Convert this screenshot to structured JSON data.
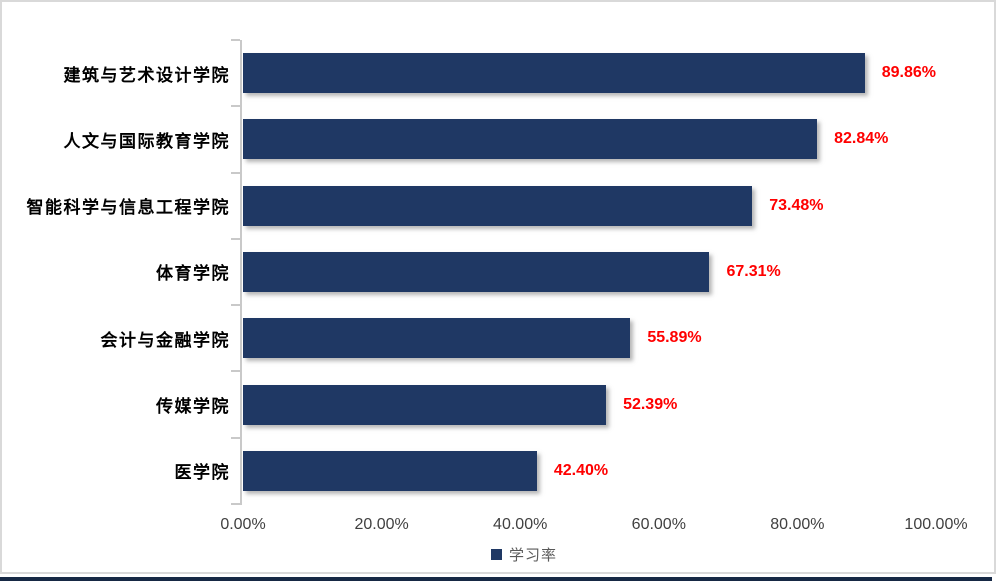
{
  "chart_data": {
    "type": "bar",
    "orientation": "horizontal",
    "title": "",
    "categories": [
      "建筑与艺术设计学院",
      "人文与国际教育学院",
      "智能科学与信息工程学院",
      "体育学院",
      "会计与金融学院",
      "传媒学院",
      "医学院"
    ],
    "values": [
      89.86,
      82.84,
      73.48,
      67.31,
      55.89,
      52.39,
      42.4
    ],
    "value_labels": [
      "89.86%",
      "82.84%",
      "73.48%",
      "67.31%",
      "55.89%",
      "52.39%",
      "42.40%"
    ],
    "x_tick_labels": [
      "0.00%",
      "20.00%",
      "40.00%",
      "60.00%",
      "80.00%",
      "100.00%"
    ],
    "xlim": [
      0,
      100
    ],
    "grid": false,
    "legend_position": "bottom-center",
    "legend": {
      "label": "学习率"
    },
    "colors": {
      "bar": "#1f3864",
      "value_label": "#ff0000",
      "axis": "#c9c9c9",
      "tick_label": "#404040",
      "category_label": "#000000",
      "outer_border": "#d9d9d9",
      "bottom_accent": "#162844",
      "legend_text": "#595959"
    }
  }
}
